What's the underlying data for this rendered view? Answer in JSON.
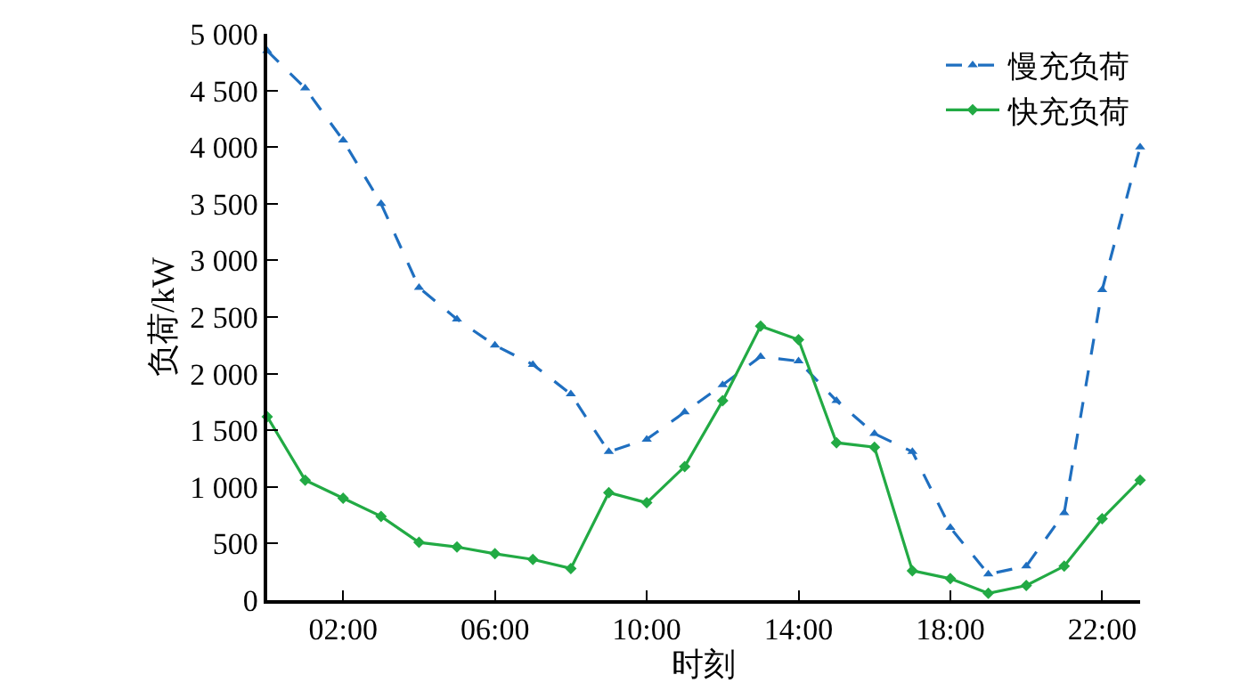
{
  "chart_data": {
    "type": "line",
    "xlabel": "时刻",
    "ylabel": "负荷/kW",
    "x": [
      0,
      1,
      2,
      3,
      4,
      5,
      6,
      7,
      8,
      9,
      10,
      11,
      12,
      13,
      14,
      15,
      16,
      17,
      18,
      19,
      20,
      21,
      22,
      23
    ],
    "series": [
      {
        "name": "慢充负荷",
        "color": "#1f6fc0",
        "line_style": "dashed",
        "marker": "triangle",
        "values": [
          4850,
          4520,
          4060,
          3500,
          2760,
          2480,
          2250,
          2080,
          1820,
          1310,
          1420,
          1660,
          1900,
          2150,
          2110,
          1760,
          1470,
          1310,
          640,
          230,
          300,
          770,
          2740,
          4000
        ]
      },
      {
        "name": "快充负荷",
        "color": "#22aa44",
        "line_style": "solid",
        "marker": "diamond",
        "values": [
          1620,
          1060,
          900,
          740,
          510,
          470,
          410,
          360,
          280,
          950,
          860,
          1180,
          1760,
          2420,
          2300,
          1390,
          1350,
          260,
          190,
          60,
          130,
          300,
          720,
          1060
        ]
      }
    ],
    "xlim": [
      0,
      23
    ],
    "xticks": [
      {
        "value": 2,
        "label": "02:00"
      },
      {
        "value": 6,
        "label": "06:00"
      },
      {
        "value": 10,
        "label": "10:00"
      },
      {
        "value": 14,
        "label": "14:00"
      },
      {
        "value": 18,
        "label": "18:00"
      },
      {
        "value": 22,
        "label": "22:00"
      }
    ],
    "ylim": [
      0,
      5000
    ],
    "yticks": [
      0,
      500,
      {
        "value": 1000,
        "label": "1 000"
      },
      {
        "value": 1500,
        "label": "1 500"
      },
      {
        "value": 2000,
        "label": "2 000"
      },
      {
        "value": 2500,
        "label": "2 500"
      },
      {
        "value": 3000,
        "label": "3 000"
      },
      {
        "value": 3500,
        "label": "3 500"
      },
      {
        "value": 4000,
        "label": "4 000"
      },
      {
        "value": 4500,
        "label": "4 500"
      },
      {
        "value": 5000,
        "label": "5 000"
      }
    ],
    "legend": "top right"
  }
}
